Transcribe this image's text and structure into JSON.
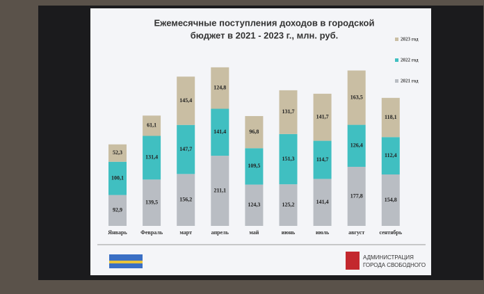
{
  "chart_data": {
    "type": "stacked_bar",
    "title": [
      "Ежемесячные поступления  доходов в городской",
      "бюджет в 2021 - 2023 г., млн. руб."
    ],
    "categories": [
      "Январь",
      "Февраль",
      "март",
      "апрель",
      "май",
      "июнь",
      "июль",
      "август",
      "сентябрь"
    ],
    "series": [
      {
        "name": "2021 год",
        "color": "#b9bdc3",
        "values": [
          92.9,
          139.5,
          156.2,
          211.1,
          124.3,
          125.2,
          141.4,
          177.8,
          154.8
        ],
        "value_labels": [
          "92,9",
          "139,5",
          "156,2",
          "211,1",
          "124,3",
          "125,2",
          "141,4",
          "177,8",
          "154,8"
        ]
      },
      {
        "name": "2022 год",
        "color": "#40bfc1",
        "values": [
          100.1,
          131.4,
          147.7,
          141.4,
          109.5,
          151.3,
          114.7,
          126.4,
          112.4
        ],
        "value_labels": [
          "100,1",
          "131,4",
          "147,7",
          "141,4",
          "109,5",
          "151,3",
          "114,7",
          "126,4",
          "112,4"
        ]
      },
      {
        "name": "2023 год",
        "color": "#c9bea3",
        "values": [
          52.3,
          61.1,
          145.4,
          124.8,
          96.8,
          131.7,
          141.7,
          163.5,
          118.1
        ],
        "value_labels": [
          "52,3",
          "61,1",
          "145,4",
          "124,8",
          "96,8",
          "131,7",
          "141,7",
          "163,5",
          "118,1"
        ]
      }
    ],
    "legend": "right"
  },
  "footer": {
    "org": [
      "АДМИНИСТРАЦИЯ",
      "ГОРОДА СВОБОДНОГО"
    ]
  }
}
